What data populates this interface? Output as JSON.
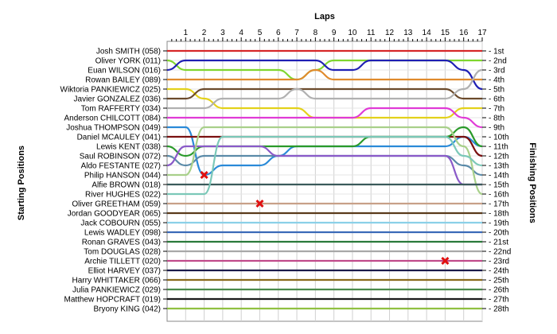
{
  "chart_data": {
    "type": "line",
    "title": "",
    "xlabel": "Laps",
    "ylabel_left": "Starting Positions",
    "ylabel_right": "Finishing Positions",
    "laps": [
      1,
      2,
      3,
      4,
      5,
      6,
      7,
      8,
      9,
      10,
      11,
      12,
      13,
      14,
      15,
      16,
      17
    ],
    "grid": true,
    "starting_labels": [
      "Josh SMITH (058)",
      "Oliver YORK (011)",
      "Euan WILSON (016)",
      "Rowan BAILEY (089)",
      "Wiktoria PANKIEWICZ (025)",
      "Javier GONZALEZ (036)",
      "Tom RAFFERTY (034)",
      "Anderson CHILCOTT (084)",
      "Joshua THOMPSON (049)",
      "Daniel MCAULEY (041)",
      "Lewis KENT (038)",
      "Saul ROBINSON (072)",
      "Aldo FESTANTE (027)",
      "Philip HANSON (044)",
      "Alfie BROWN (018)",
      "River HUGHES (022)",
      "Oliver GREETHAM (059)",
      "Jordan GOODYEAR (065)",
      "Jack COBOURN (055)",
      "Lewis WADLEY (098)",
      "Ronan GRAVES (043)",
      "Tom DOUGLAS (028)",
      "Archie TILLETT (020)",
      "Elliot HARVEY (037)",
      "Harry WHITTAKER (066)",
      "Julia PANKIEWICZ (029)",
      "Matthew HOPCRAFT (019)",
      "Bryony KING (042)"
    ],
    "finishing_labels": [
      "1st",
      "2nd",
      "3rd",
      "4th",
      "5th",
      "6th",
      "7th",
      "8th",
      "9th",
      "10th",
      "11th",
      "12th",
      "13th",
      "14th",
      "15th",
      "16th",
      "17th",
      "18th",
      "19th",
      "20th",
      "21st",
      "22nd",
      "23rd",
      "24th",
      "25th",
      "26th",
      "27th",
      "28th"
    ],
    "series": [
      {
        "color": "#d62728",
        "positions": [
          1,
          1,
          1,
          1,
          1,
          1,
          1,
          1,
          1,
          1,
          1,
          1,
          1,
          1,
          1,
          1,
          1,
          1
        ]
      },
      {
        "color": "#7fd62e",
        "positions": [
          2,
          3,
          3,
          3,
          3,
          3,
          3,
          4,
          3,
          2,
          2,
          2,
          2,
          2,
          2,
          2,
          2,
          2
        ]
      },
      {
        "color": "#1f1fb4",
        "positions": [
          3,
          2,
          2,
          2,
          2,
          2,
          2,
          2,
          2,
          3,
          3,
          2,
          2,
          2,
          2,
          2,
          3,
          5
        ]
      },
      {
        "color": "#e08a2c",
        "positions": [
          4,
          4,
          4,
          4,
          4,
          4,
          4,
          4,
          3,
          4,
          4,
          4,
          4,
          4,
          4,
          4,
          4,
          4
        ]
      },
      {
        "color": "#e3d11a",
        "positions": [
          5,
          5,
          6,
          7,
          7,
          7,
          7,
          7,
          8,
          8,
          8,
          8,
          8,
          8,
          8,
          8,
          7,
          7
        ]
      },
      {
        "color": "#6b4a2b",
        "positions": [
          6,
          6,
          5,
          5,
          5,
          5,
          5,
          5,
          5,
          5,
          5,
          5,
          5,
          5,
          5,
          5,
          6,
          6
        ]
      },
      {
        "color": "#b0b0b0",
        "positions": [
          7,
          7,
          7,
          6,
          6,
          6,
          6,
          5,
          6,
          6,
          6,
          6,
          6,
          6,
          6,
          6,
          5,
          3
        ]
      },
      {
        "color": "#e03ad6",
        "positions": [
          8,
          8,
          8,
          8,
          8,
          8,
          8,
          8,
          8,
          8,
          8,
          7,
          7,
          7,
          7,
          7,
          8,
          9
        ]
      },
      {
        "color": "#2a8ad8",
        "positions": [
          9,
          9,
          14,
          13,
          13,
          13,
          12,
          11,
          11,
          11,
          11,
          11,
          11,
          11,
          11,
          11,
          10,
          11
        ]
      },
      {
        "color": "#7a1010",
        "positions": [
          10,
          10,
          10,
          10,
          10,
          10,
          10,
          10,
          10,
          10,
          10,
          10,
          10,
          10,
          10,
          10,
          10,
          12
        ]
      },
      {
        "color": "#2a9a2a",
        "positions": [
          11,
          12,
          11,
          11,
          11,
          11,
          11,
          11,
          11,
          11,
          11,
          10,
          10,
          10,
          10,
          10,
          9,
          11
        ]
      },
      {
        "color": "#5a8aa8",
        "positions": [
          12,
          13,
          12,
          12,
          12,
          12,
          12,
          12,
          12,
          12,
          12,
          12,
          12,
          12,
          12,
          12,
          13,
          14
        ]
      },
      {
        "color": "#8a5ac8",
        "positions": [
          13,
          11,
          11,
          11,
          11,
          11,
          12,
          12,
          12,
          12,
          12,
          12,
          12,
          12,
          12,
          12,
          15,
          15
        ]
      },
      {
        "color": "#a8d08a",
        "positions": [
          14,
          14,
          9,
          9,
          9,
          9,
          9,
          9,
          9,
          9,
          9,
          9,
          9,
          9,
          9,
          9,
          11,
          16
        ]
      },
      {
        "color": "#3a5a5a",
        "positions": [
          15,
          15,
          15,
          15,
          15,
          15,
          15,
          15,
          15,
          15,
          15,
          15,
          15,
          15,
          15,
          15,
          15,
          15
        ]
      },
      {
        "color": "#7bc8b8",
        "positions": [
          16,
          16,
          16,
          10,
          10,
          10,
          10,
          10,
          10,
          10,
          10,
          10,
          10,
          10,
          10,
          10,
          12,
          13
        ]
      },
      {
        "color": "#c8a088",
        "positions": [
          17,
          17,
          17,
          17,
          17,
          17,
          17,
          17,
          17,
          17,
          17,
          17,
          17,
          17,
          17,
          17,
          17,
          17
        ]
      },
      {
        "color": "#5a3a1a",
        "positions": [
          18,
          18,
          18,
          18,
          18,
          18,
          18,
          18,
          18,
          18,
          18,
          18,
          18,
          18,
          18,
          18,
          18,
          18
        ]
      },
      {
        "color": "#8ad0e8",
        "positions": [
          19,
          19,
          19,
          19,
          19,
          19,
          19,
          19,
          19,
          19,
          19,
          19,
          19,
          19,
          19,
          19,
          19,
          19
        ]
      },
      {
        "color": "#3a6ab8",
        "positions": [
          20,
          20,
          20,
          20,
          20,
          20,
          20,
          20,
          20,
          20,
          20,
          20,
          20,
          20,
          20,
          20,
          20,
          20
        ]
      },
      {
        "color": "#2a7a3a",
        "positions": [
          21,
          21,
          21,
          21,
          21,
          21,
          21,
          21,
          21,
          21,
          21,
          21,
          21,
          21,
          21,
          21,
          21,
          21
        ]
      },
      {
        "color": "#a8a8a8",
        "positions": [
          22,
          22,
          22,
          22,
          22,
          22,
          22,
          22,
          22,
          22,
          22,
          22,
          22,
          22,
          22,
          22,
          22,
          22
        ]
      },
      {
        "color": "#c04a8a",
        "positions": [
          23,
          23,
          23,
          23,
          23,
          23,
          23,
          23,
          23,
          23,
          23,
          23,
          23,
          23,
          23,
          23,
          23,
          23
        ]
      },
      {
        "color": "#1a1a4a",
        "positions": [
          24,
          24,
          24,
          24,
          24,
          24,
          24,
          24,
          24,
          24,
          24,
          24,
          24,
          24,
          24,
          24,
          24,
          24
        ]
      },
      {
        "color": "#8a6a1a",
        "positions": [
          25,
          25,
          25,
          25,
          25,
          25,
          25,
          25,
          25,
          25,
          25,
          25,
          25,
          25,
          25,
          25,
          25,
          25
        ]
      },
      {
        "color": "#4a8a4a",
        "positions": [
          26,
          26,
          26,
          26,
          26,
          26,
          26,
          26,
          26,
          26,
          26,
          26,
          26,
          26,
          26,
          26,
          26,
          26
        ]
      },
      {
        "color": "#1a1a1a",
        "positions": [
          27,
          27,
          27,
          27,
          27,
          27,
          27,
          27,
          27,
          27,
          27,
          27,
          27,
          27,
          27,
          27,
          27,
          27
        ]
      },
      {
        "color": "#90c040",
        "positions": [
          28,
          28,
          28,
          28,
          28,
          28,
          28,
          28,
          28,
          28,
          28,
          28,
          28,
          28,
          28,
          28,
          28,
          28
        ]
      }
    ],
    "retirements": [
      {
        "lap": 2,
        "position": 14
      },
      {
        "lap": 5,
        "position": 17
      },
      {
        "lap": 15,
        "position": 23
      }
    ]
  }
}
